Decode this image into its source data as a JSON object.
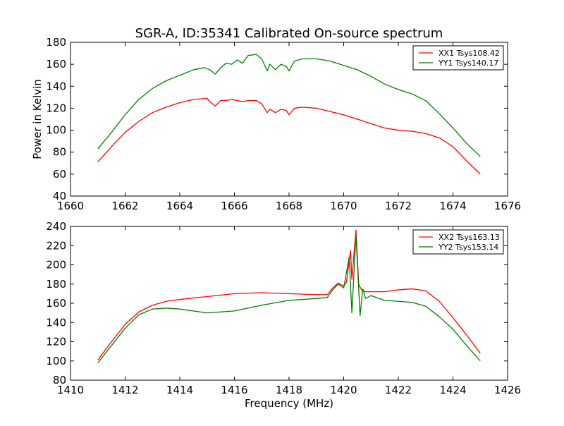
{
  "figure": {
    "title": "SGR-A, ID:35341 Calibrated On-source spectrum"
  },
  "chart_data": [
    {
      "type": "line",
      "xlabel": "",
      "ylabel": "Power in Kelvin",
      "xlim": [
        1660,
        1676
      ],
      "ylim": [
        40,
        180
      ],
      "xticks": [
        "1660",
        "1662",
        "1664",
        "1666",
        "1668",
        "1670",
        "1672",
        "1674",
        "1676"
      ],
      "yticks": [
        "40",
        "60",
        "80",
        "100",
        "120",
        "140",
        "160",
        "180"
      ],
      "legend_position": "top-right",
      "series": [
        {
          "name": "XX1 Tsys108.42",
          "color": "#ff0000",
          "points": [
            [
              1661.0,
              71
            ],
            [
              1661.5,
              85
            ],
            [
              1662.0,
              98
            ],
            [
              1662.5,
              108
            ],
            [
              1663.0,
              116
            ],
            [
              1663.5,
              121
            ],
            [
              1664.0,
              125
            ],
            [
              1664.5,
              128
            ],
            [
              1665.0,
              129
            ],
            [
              1665.1,
              126
            ],
            [
              1665.3,
              122
            ],
            [
              1665.5,
              127
            ],
            [
              1665.7,
              127
            ],
            [
              1665.9,
              128
            ],
            [
              1666.1,
              127
            ],
            [
              1666.3,
              126
            ],
            [
              1666.5,
              127
            ],
            [
              1666.8,
              127
            ],
            [
              1667.0,
              124
            ],
            [
              1667.2,
              116
            ],
            [
              1667.3,
              119
            ],
            [
              1667.5,
              116
            ],
            [
              1667.7,
              119
            ],
            [
              1667.9,
              118
            ],
            [
              1668.0,
              114
            ],
            [
              1668.2,
              120
            ],
            [
              1668.5,
              121
            ],
            [
              1669.0,
              120
            ],
            [
              1669.5,
              117
            ],
            [
              1670.0,
              114
            ],
            [
              1670.5,
              110
            ],
            [
              1671.0,
              106
            ],
            [
              1671.5,
              102
            ],
            [
              1672.0,
              100
            ],
            [
              1672.5,
              99
            ],
            [
              1673.0,
              97
            ],
            [
              1673.5,
              93
            ],
            [
              1674.0,
              85
            ],
            [
              1674.5,
              72
            ],
            [
              1675.0,
              60
            ]
          ]
        },
        {
          "name": "YY1 Tsys140.17",
          "color": "#007f00",
          "points": [
            [
              1661.0,
              83
            ],
            [
              1661.5,
              98
            ],
            [
              1662.0,
              114
            ],
            [
              1662.5,
              128
            ],
            [
              1663.0,
              138
            ],
            [
              1663.5,
              145
            ],
            [
              1664.0,
              150
            ],
            [
              1664.5,
              155
            ],
            [
              1664.9,
              157
            ],
            [
              1665.1,
              155
            ],
            [
              1665.3,
              151
            ],
            [
              1665.5,
              157
            ],
            [
              1665.7,
              161
            ],
            [
              1665.9,
              160
            ],
            [
              1666.1,
              164
            ],
            [
              1666.3,
              161
            ],
            [
              1666.5,
              168
            ],
            [
              1666.8,
              169
            ],
            [
              1667.0,
              165
            ],
            [
              1667.2,
              154
            ],
            [
              1667.3,
              160
            ],
            [
              1667.5,
              155
            ],
            [
              1667.7,
              160
            ],
            [
              1667.9,
              158
            ],
            [
              1668.0,
              154
            ],
            [
              1668.2,
              163
            ],
            [
              1668.5,
              165
            ],
            [
              1669.0,
              165
            ],
            [
              1669.5,
              163
            ],
            [
              1670.0,
              159
            ],
            [
              1670.5,
              155
            ],
            [
              1671.0,
              149
            ],
            [
              1671.5,
              142
            ],
            [
              1672.0,
              137
            ],
            [
              1672.5,
              133
            ],
            [
              1673.0,
              127
            ],
            [
              1673.5,
              115
            ],
            [
              1674.0,
              102
            ],
            [
              1674.5,
              88
            ],
            [
              1675.0,
              76
            ]
          ]
        }
      ]
    },
    {
      "type": "line",
      "xlabel": "Frequency (MHz)",
      "ylabel": "",
      "xlim": [
        1410,
        1426
      ],
      "ylim": [
        80,
        240
      ],
      "xticks": [
        "1410",
        "1412",
        "1414",
        "1416",
        "1418",
        "1420",
        "1422",
        "1424",
        "1426"
      ],
      "yticks": [
        "80",
        "100",
        "120",
        "140",
        "160",
        "180",
        "200",
        "220",
        "240"
      ],
      "legend_position": "top-right",
      "series": [
        {
          "name": "XX2 Tsys163.13",
          "color": "#ff0000",
          "points": [
            [
              1411.0,
              101
            ],
            [
              1411.5,
              120
            ],
            [
              1412.0,
              138
            ],
            [
              1412.5,
              151
            ],
            [
              1413.0,
              158
            ],
            [
              1413.5,
              162
            ],
            [
              1414.0,
              164
            ],
            [
              1415.0,
              167
            ],
            [
              1416.0,
              170
            ],
            [
              1417.0,
              171
            ],
            [
              1418.0,
              170
            ],
            [
              1419.0,
              169
            ],
            [
              1419.4,
              169
            ],
            [
              1419.6,
              176
            ],
            [
              1419.8,
              181
            ],
            [
              1420.0,
              178
            ],
            [
              1420.1,
              182
            ],
            [
              1420.25,
              215
            ],
            [
              1420.3,
              185
            ],
            [
              1420.45,
              236
            ],
            [
              1420.55,
              180
            ],
            [
              1420.65,
              174
            ],
            [
              1420.8,
              172
            ],
            [
              1421.0,
              172
            ],
            [
              1421.5,
              172
            ],
            [
              1422.0,
              174
            ],
            [
              1422.5,
              175
            ],
            [
              1423.0,
              173
            ],
            [
              1423.5,
              162
            ],
            [
              1424.0,
              145
            ],
            [
              1424.5,
              127
            ],
            [
              1425.0,
              108
            ]
          ]
        },
        {
          "name": "YY2 Tsys153.14",
          "color": "#007f00",
          "points": [
            [
              1411.0,
              98
            ],
            [
              1411.5,
              116
            ],
            [
              1412.0,
              134
            ],
            [
              1412.5,
              148
            ],
            [
              1413.0,
              154
            ],
            [
              1413.5,
              155
            ],
            [
              1414.0,
              154
            ],
            [
              1415.0,
              150
            ],
            [
              1416.0,
              152
            ],
            [
              1417.0,
              158
            ],
            [
              1418.0,
              163
            ],
            [
              1419.0,
              165
            ],
            [
              1419.4,
              166
            ],
            [
              1419.6,
              174
            ],
            [
              1419.8,
              180
            ],
            [
              1420.0,
              176
            ],
            [
              1420.2,
              208
            ],
            [
              1420.3,
              150
            ],
            [
              1420.45,
              231
            ],
            [
              1420.6,
              147
            ],
            [
              1420.7,
              175
            ],
            [
              1420.8,
              165
            ],
            [
              1421.0,
              168
            ],
            [
              1421.5,
              163
            ],
            [
              1422.0,
              162
            ],
            [
              1422.5,
              161
            ],
            [
              1423.0,
              157
            ],
            [
              1423.5,
              146
            ],
            [
              1424.0,
              133
            ],
            [
              1424.5,
              116
            ],
            [
              1425.0,
              100
            ]
          ]
        }
      ]
    }
  ]
}
